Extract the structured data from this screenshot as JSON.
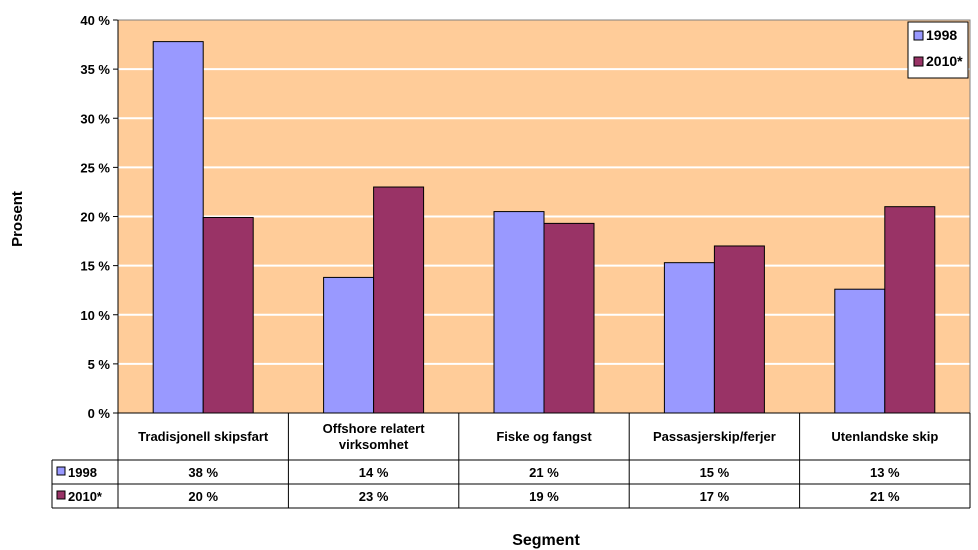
{
  "chart_data": {
    "type": "bar",
    "ylabel": "Prosent",
    "xlabel": "Segment",
    "ylim": [
      0,
      40
    ],
    "y_ticks": [
      "0 %",
      "5 %",
      "10 %",
      "15 %",
      "20 %",
      "25 %",
      "30 %",
      "35 %",
      "40 %"
    ],
    "y_tick_values": [
      0,
      5,
      10,
      15,
      20,
      25,
      30,
      35,
      40
    ],
    "categories": [
      "Tradisjonell skipsfart",
      "Offshore relatert virksomhet",
      "Fiske og fangst",
      "Passasjerskip/ferjer",
      "Utenlandske skip"
    ],
    "series": [
      {
        "name": "1998",
        "color": "#9999ff",
        "values": [
          37.8,
          13.8,
          20.5,
          15.3,
          12.6
        ],
        "labels": [
          "38 %",
          "14 %",
          "21 %",
          "15 %",
          "13 %"
        ]
      },
      {
        "name": "2010*",
        "color": "#993366",
        "values": [
          19.9,
          23.0,
          19.3,
          17.0,
          21.0
        ],
        "labels": [
          "20 %",
          "23 %",
          "19 %",
          "17 %",
          "21 %"
        ]
      }
    ],
    "legend_position": "top-right",
    "grid": true,
    "plot_background": "#ffcc99",
    "data_table": true
  }
}
